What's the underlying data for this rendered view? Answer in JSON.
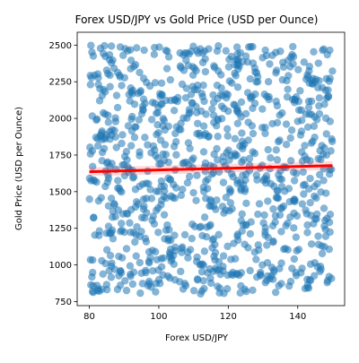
{
  "chart_data": {
    "type": "scatter",
    "title": "Forex USD/JPY vs Gold Price (USD per Ounce)",
    "xlabel": "Forex USD/JPY",
    "ylabel": "Gold Price (USD per Ounce)",
    "xlim": [
      76.5,
      153.5
    ],
    "ylim": [
      722,
      2588
    ],
    "xticks": [
      80,
      100,
      120,
      140
    ],
    "yticks": [
      750,
      1000,
      1250,
      1500,
      1750,
      2000,
      2250,
      2500
    ],
    "grid": false,
    "legend": "none",
    "scatter": {
      "color": "#1f77b4",
      "alpha": 0.55,
      "point_count": 1000,
      "x_range": [
        80,
        150
      ],
      "y_range": [
        800,
        2500
      ],
      "distribution": "approximately uniform over the ranges"
    },
    "regression": {
      "color": "#ff0000",
      "x": [
        80,
        150
      ],
      "y": [
        1636,
        1678
      ],
      "ci_halfwidth": [
        30,
        30
      ]
    }
  }
}
